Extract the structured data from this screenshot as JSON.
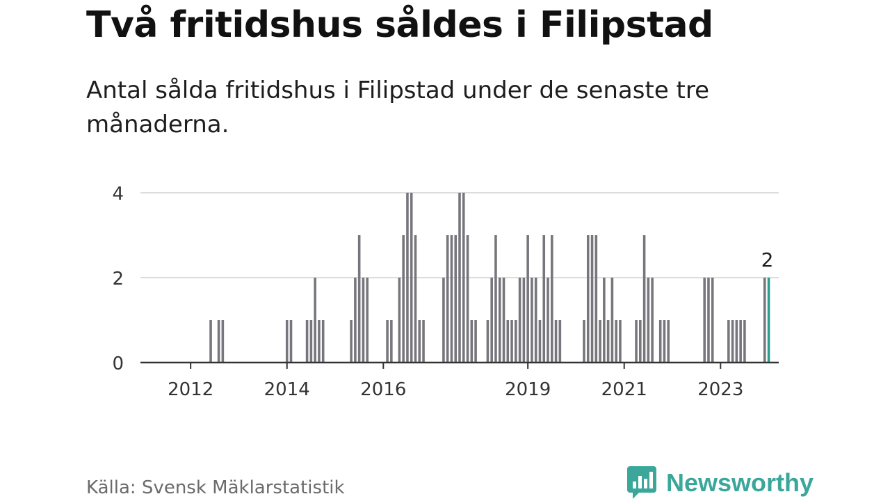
{
  "header": {
    "title": "Två fritidshus såldes i Filipstad",
    "subtitle": "Antal sålda fritidshus i Filipstad under de senaste tre månaderna."
  },
  "footer": {
    "source": "Källa: Svensk Mäklarstatistik",
    "brand": "Newsworthy"
  },
  "colors": {
    "bar": "#76767c",
    "highlight": "#2a9d8f",
    "grid": "#dcdcdc",
    "axis": "#333333",
    "brand": "#3aa79a"
  },
  "icons": {
    "brand_logo": "bar-chart-speech-bubble-icon"
  },
  "chart_data": {
    "type": "bar",
    "frequency": "monthly",
    "x_start": "2011-01",
    "x_end": "2024-03",
    "ylim": [
      0,
      4
    ],
    "yticks": [
      0,
      2,
      4
    ],
    "xticks": [
      {
        "label": "2012",
        "date": "2012-01"
      },
      {
        "label": "2014",
        "date": "2014-01"
      },
      {
        "label": "2016",
        "date": "2016-01"
      },
      {
        "label": "2019",
        "date": "2019-01"
      },
      {
        "label": "2021",
        "date": "2021-01"
      },
      {
        "label": "2023",
        "date": "2023-01"
      }
    ],
    "grid": true,
    "series": [
      {
        "data": [
          [
            "2012-06",
            1
          ],
          [
            "2012-08",
            1
          ],
          [
            "2012-09",
            1
          ],
          [
            "2014-01",
            1
          ],
          [
            "2014-02",
            1
          ],
          [
            "2014-06",
            1
          ],
          [
            "2014-07",
            1
          ],
          [
            "2014-08",
            2
          ],
          [
            "2014-09",
            1
          ],
          [
            "2014-10",
            1
          ],
          [
            "2015-05",
            1
          ],
          [
            "2015-06",
            2
          ],
          [
            "2015-07",
            3
          ],
          [
            "2015-08",
            2
          ],
          [
            "2015-09",
            2
          ],
          [
            "2016-02",
            1
          ],
          [
            "2016-03",
            1
          ],
          [
            "2016-05",
            2
          ],
          [
            "2016-06",
            3
          ],
          [
            "2016-07",
            4
          ],
          [
            "2016-08",
            4
          ],
          [
            "2016-09",
            3
          ],
          [
            "2016-10",
            1
          ],
          [
            "2016-11",
            1
          ],
          [
            "2017-04",
            2
          ],
          [
            "2017-05",
            3
          ],
          [
            "2017-06",
            3
          ],
          [
            "2017-07",
            3
          ],
          [
            "2017-08",
            4
          ],
          [
            "2017-09",
            4
          ],
          [
            "2017-10",
            3
          ],
          [
            "2017-11",
            1
          ],
          [
            "2017-12",
            1
          ],
          [
            "2018-03",
            1
          ],
          [
            "2018-04",
            2
          ],
          [
            "2018-05",
            3
          ],
          [
            "2018-06",
            2
          ],
          [
            "2018-07",
            2
          ],
          [
            "2018-08",
            1
          ],
          [
            "2018-09",
            1
          ],
          [
            "2018-10",
            1
          ],
          [
            "2018-11",
            2
          ],
          [
            "2018-12",
            2
          ],
          [
            "2019-01",
            3
          ],
          [
            "2019-02",
            2
          ],
          [
            "2019-03",
            2
          ],
          [
            "2019-04",
            1
          ],
          [
            "2019-05",
            3
          ],
          [
            "2019-06",
            2
          ],
          [
            "2019-07",
            3
          ],
          [
            "2019-08",
            1
          ],
          [
            "2019-09",
            1
          ],
          [
            "2020-03",
            1
          ],
          [
            "2020-04",
            3
          ],
          [
            "2020-05",
            3
          ],
          [
            "2020-06",
            3
          ],
          [
            "2020-07",
            1
          ],
          [
            "2020-08",
            2
          ],
          [
            "2020-09",
            1
          ],
          [
            "2020-10",
            2
          ],
          [
            "2020-11",
            1
          ],
          [
            "2020-12",
            1
          ],
          [
            "2021-04",
            1
          ],
          [
            "2021-05",
            1
          ],
          [
            "2021-06",
            3
          ],
          [
            "2021-07",
            2
          ],
          [
            "2021-08",
            2
          ],
          [
            "2021-10",
            1
          ],
          [
            "2021-11",
            1
          ],
          [
            "2021-12",
            1
          ],
          [
            "2022-09",
            2
          ],
          [
            "2022-10",
            2
          ],
          [
            "2022-11",
            2
          ],
          [
            "2023-03",
            1
          ],
          [
            "2023-04",
            1
          ],
          [
            "2023-05",
            1
          ],
          [
            "2023-06",
            1
          ],
          [
            "2023-07",
            1
          ],
          [
            "2023-12",
            2
          ],
          [
            "2024-01",
            2
          ]
        ]
      }
    ],
    "highlight": {
      "date": "2024-01",
      "value": 2,
      "label": "2"
    }
  }
}
